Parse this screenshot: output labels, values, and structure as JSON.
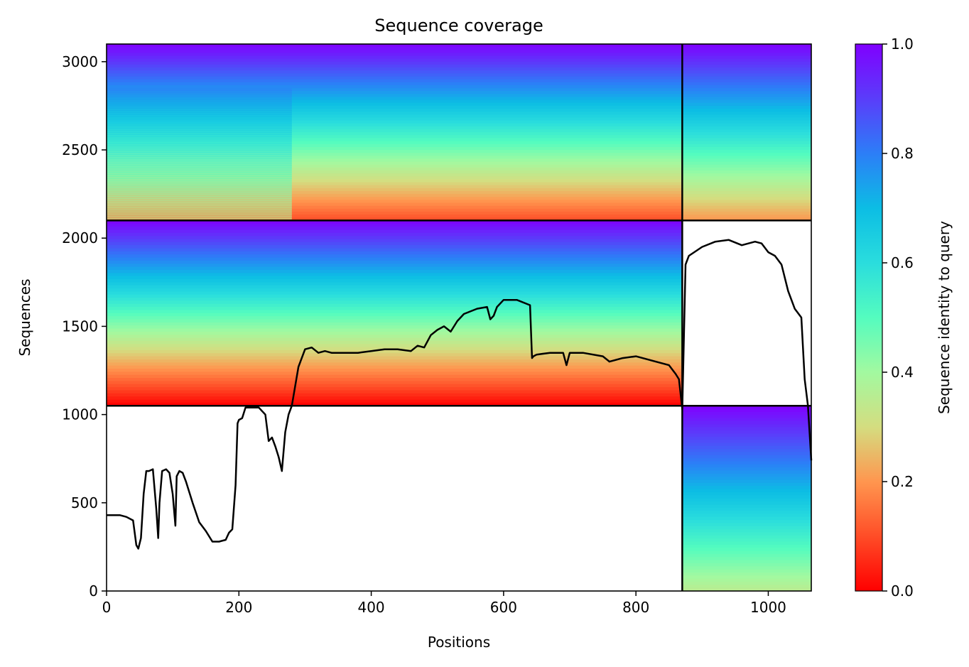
{
  "chart_data": {
    "type": "heatmap",
    "title": "Sequence coverage",
    "xlabel": "Positions",
    "ylabel": "Sequences",
    "xlim": [
      0,
      1065
    ],
    "ylim": [
      0,
      3100
    ],
    "x_ticks": [
      0,
      200,
      400,
      600,
      800,
      1000
    ],
    "y_ticks": [
      0,
      500,
      1000,
      1500,
      2000,
      2500,
      3000
    ],
    "colorbar": {
      "label": "Sequence identity to query",
      "colormap": "rainbow_r",
      "range": [
        0,
        1
      ],
      "ticks": [
        "0.0",
        "0.2",
        "0.4",
        "0.6",
        "0.8",
        "1.0"
      ],
      "color_stops": [
        {
          "value": 0.0,
          "color": "#ff0000"
        },
        {
          "value": 0.1,
          "color": "#ff4d27"
        },
        {
          "value": 0.2,
          "color": "#ff964f"
        },
        {
          "value": 0.3,
          "color": "#d4dd80"
        },
        {
          "value": 0.4,
          "color": "#a2f9a0"
        },
        {
          "value": 0.5,
          "color": "#54fcbf"
        },
        {
          "value": 0.6,
          "color": "#2adddd"
        },
        {
          "value": 0.7,
          "color": "#0cbde4"
        },
        {
          "value": 0.8,
          "color": "#2c7ef7"
        },
        {
          "value": 0.9,
          "color": "#5a3dfa"
        },
        {
          "value": 1.0,
          "color": "#8000ff"
        }
      ]
    },
    "chain_boundaries": {
      "positions": [
        870
      ],
      "sequences": [
        1050,
        2100
      ]
    },
    "coverage_blocks": [
      {
        "x_range": [
          0,
          870
        ],
        "y_range": [
          2100,
          3100
        ],
        "identity_top": 1.0,
        "identity_bottom": 0.1
      },
      {
        "x_range": [
          0,
          280
        ],
        "y_range": [
          2100,
          2850
        ],
        "identity_top": 0.8,
        "identity_bottom": 0.35,
        "density": "sparse"
      },
      {
        "x_range": [
          870,
          1065
        ],
        "y_range": [
          2100,
          3100
        ],
        "identity_top": 1.0,
        "identity_bottom": 0.2
      },
      {
        "x_range": [
          0,
          870
        ],
        "y_range": [
          1050,
          2100
        ],
        "identity_top": 1.0,
        "identity_bottom": 0.0
      },
      {
        "x_range": [
          870,
          1065
        ],
        "y_range": [
          0,
          1050
        ],
        "identity_top": 1.0,
        "identity_bottom": 0.35
      }
    ],
    "coverage_line": {
      "color": "#000000",
      "x": [
        0,
        20,
        30,
        40,
        45,
        48,
        52,
        56,
        60,
        64,
        70,
        75,
        78,
        80,
        84,
        90,
        95,
        100,
        104,
        106,
        110,
        115,
        120,
        130,
        140,
        150,
        160,
        170,
        180,
        185,
        190,
        195,
        198,
        200,
        205,
        210,
        220,
        230,
        240,
        245,
        250,
        255,
        260,
        265,
        270,
        275,
        280,
        290,
        300,
        310,
        320,
        330,
        340,
        350,
        360,
        380,
        400,
        420,
        440,
        460,
        470,
        480,
        490,
        500,
        510,
        520,
        530,
        540,
        560,
        575,
        580,
        585,
        590,
        600,
        620,
        640,
        643,
        645,
        650,
        670,
        690,
        695,
        700,
        720,
        750,
        760,
        780,
        800,
        820,
        840,
        850,
        860,
        865,
        870,
        875,
        880,
        900,
        920,
        940,
        960,
        980,
        990,
        1000,
        1010,
        1020,
        1030,
        1040,
        1050,
        1055,
        1060,
        1065
      ],
      "y": [
        430,
        430,
        420,
        400,
        260,
        240,
        300,
        550,
        680,
        680,
        690,
        470,
        300,
        500,
        680,
        690,
        670,
        550,
        370,
        650,
        680,
        670,
        620,
        500,
        390,
        340,
        280,
        280,
        290,
        330,
        350,
        600,
        950,
        970,
        980,
        1040,
        1040,
        1040,
        1000,
        850,
        870,
        820,
        760,
        680,
        900,
        1000,
        1050,
        1270,
        1370,
        1380,
        1350,
        1360,
        1350,
        1350,
        1350,
        1350,
        1360,
        1370,
        1370,
        1360,
        1390,
        1380,
        1450,
        1480,
        1500,
        1470,
        1530,
        1570,
        1600,
        1610,
        1540,
        1560,
        1610,
        1650,
        1650,
        1620,
        1320,
        1330,
        1340,
        1350,
        1350,
        1280,
        1350,
        1350,
        1330,
        1300,
        1320,
        1330,
        1310,
        1290,
        1280,
        1230,
        1200,
        1030,
        1850,
        1900,
        1950,
        1980,
        1990,
        1960,
        1980,
        1970,
        1920,
        1900,
        1850,
        1700,
        1600,
        1550,
        1200,
        1050,
        740
      ]
    }
  }
}
